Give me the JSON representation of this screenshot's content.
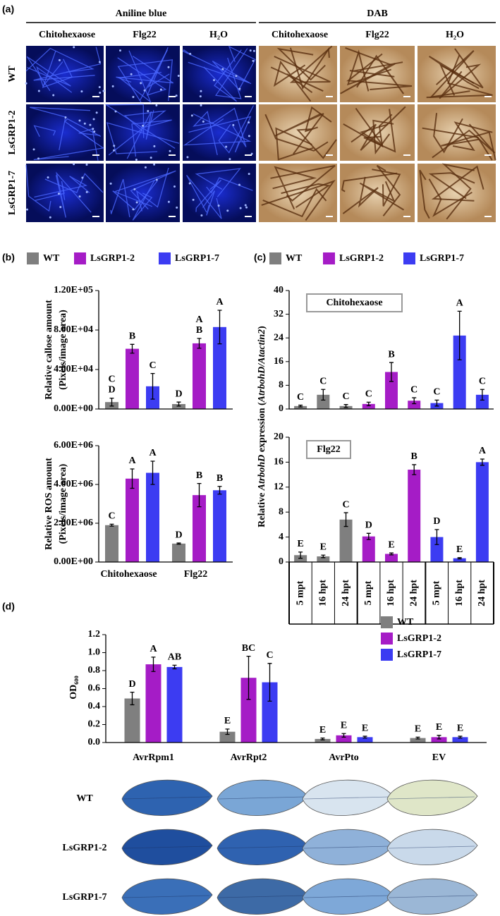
{
  "panel_a": {
    "label": "(a)",
    "groups": [
      "Aniline blue",
      "DAB"
    ],
    "columns": [
      "Chitohexaose",
      "Flg22",
      "H₂O",
      "Chitohexaose",
      "Flg22",
      "H₂O"
    ],
    "rows": [
      "WT",
      "LsGRP1-2",
      "LsGRP1-7"
    ]
  },
  "chart_data": [
    {
      "type": "bar",
      "panel_label": "(b)",
      "categories": [
        "Chitohexaose",
        "Flg22"
      ],
      "series": [
        {
          "name": "WT",
          "color": "#7f7f7f"
        },
        {
          "name": "LsGRP1-2",
          "color": "#a51cc6"
        },
        {
          "name": "LsGRP1-7",
          "color": "#3c3cf2"
        }
      ],
      "subplots": [
        {
          "ylabel": [
            "Relative callose amount",
            "(Pixels/image area)"
          ],
          "ylim": [
            0,
            120000
          ],
          "yticks": [
            {
              "value": 0,
              "label": "0.00E+00"
            },
            {
              "value": 40000,
              "label": "4.00E+04"
            },
            {
              "value": 80000,
              "label": "8.00E+04"
            },
            {
              "value": 120000,
              "label": "1.20E+05"
            }
          ],
          "series": [
            {
              "values": [
                7000,
                5000
              ],
              "errors": [
                4000,
                2000
              ],
              "letters": [
                [
                  "C",
                  "D"
                ],
                "D"
              ]
            },
            {
              "values": [
                61000,
                66500
              ],
              "errors": [
                4500,
                5000
              ],
              "letters": [
                "B",
                [
                  "A",
                  "B"
                ]
              ]
            },
            {
              "values": [
                23000,
                83000
              ],
              "errors": [
                13000,
                17000
              ],
              "letters": [
                "C",
                "A"
              ]
            }
          ]
        },
        {
          "ylabel": [
            "Relative ROS amount",
            "(Pixels/image area)"
          ],
          "ylim": [
            0,
            6000000
          ],
          "yticks": [
            {
              "value": 0,
              "label": "0.00E+00"
            },
            {
              "value": 2000000,
              "label": "2.00E+06"
            },
            {
              "value": 4000000,
              "label": "4.00E+06"
            },
            {
              "value": 6000000,
              "label": "6.00E+06"
            }
          ],
          "series": [
            {
              "values": [
                1900000,
                950000
              ],
              "errors": [
                50000,
                30000
              ],
              "letters": [
                "C",
                "D"
              ]
            },
            {
              "values": [
                4300000,
                3450000
              ],
              "errors": [
                500000,
                600000
              ],
              "letters": [
                "A",
                "B"
              ]
            },
            {
              "values": [
                4600000,
                3700000
              ],
              "errors": [
                600000,
                200000
              ],
              "letters": [
                "A",
                "B"
              ]
            }
          ]
        }
      ]
    },
    {
      "type": "bar",
      "panel_label": "(c)",
      "categories": [
        "5 mpt",
        "16 hpt",
        "24 hpt"
      ],
      "series": [
        {
          "name": "WT",
          "color": "#7f7f7f"
        },
        {
          "name": "LsGRP1-2",
          "color": "#a51cc6"
        },
        {
          "name": "LsGRP1-7",
          "color": "#3c3cf2"
        }
      ],
      "ylabel": [
        "Relative ",
        "AtrbohD",
        " expression (",
        "AtrbohD/Atactin2",
        ")"
      ],
      "subplots": [
        {
          "title": "Chitohexaose",
          "ylim": [
            0,
            40
          ],
          "yticks": [
            0,
            8,
            16,
            24,
            32,
            40
          ],
          "series": [
            {
              "values": [
                1.0,
                4.8,
                1.0
              ],
              "errors": [
                0.3,
                1.8,
                0.5
              ],
              "letters": [
                "C",
                "C",
                "C"
              ]
            },
            {
              "values": [
                1.7,
                12.5,
                2.8
              ],
              "errors": [
                0.6,
                3.2,
                1.0
              ],
              "letters": [
                "C",
                "B",
                "C"
              ]
            },
            {
              "values": [
                2.0,
                24.8,
                4.8
              ],
              "errors": [
                1.0,
                8.2,
                1.8
              ],
              "letters": [
                "C",
                "A",
                "C"
              ]
            }
          ]
        },
        {
          "title": "Flg22",
          "ylim": [
            0,
            20
          ],
          "yticks": [
            0,
            4,
            8,
            12,
            16,
            20
          ],
          "series": [
            {
              "values": [
                1.1,
                0.9,
                6.8
              ],
              "errors": [
                0.5,
                0.2,
                1.1
              ],
              "letters": [
                "E",
                "E",
                "C"
              ]
            },
            {
              "values": [
                4.1,
                1.3,
                14.8
              ],
              "errors": [
                0.5,
                0.15,
                0.8
              ],
              "letters": [
                "D",
                "E",
                "B"
              ]
            },
            {
              "values": [
                4.0,
                0.6,
                16.0
              ],
              "errors": [
                1.2,
                0.1,
                0.5
              ],
              "letters": [
                "D",
                "E",
                "A"
              ]
            }
          ]
        }
      ]
    },
    {
      "type": "bar",
      "panel_label": "(d)",
      "categories": [
        "AvrRpm1",
        "AvrRpt2",
        "AvrPto",
        "EV"
      ],
      "ylabel": "OD₆₀₀",
      "ylim": [
        0,
        1.2
      ],
      "yticks": [
        {
          "value": 0,
          "label": "0.0"
        },
        0.2,
        0.4,
        0.6,
        0.8,
        {
          "value": 1,
          "label": "1.0"
        },
        1.2
      ],
      "series": [
        {
          "name": "WT",
          "color": "#7f7f7f",
          "values": [
            0.49,
            0.12,
            0.04,
            0.05
          ],
          "errors": [
            0.07,
            0.03,
            0.01,
            0.01
          ],
          "letters": [
            "D",
            "E",
            "E",
            "E"
          ]
        },
        {
          "name": "LsGRP1-2",
          "color": "#a51cc6",
          "values": [
            0.87,
            0.72,
            0.08,
            0.06
          ],
          "errors": [
            0.08,
            0.24,
            0.02,
            0.02
          ],
          "letters": [
            "A",
            "BC",
            "E",
            "E"
          ]
        },
        {
          "name": "LsGRP1-7",
          "color": "#3c3cf2",
          "values": [
            0.84,
            0.67,
            0.06,
            0.06
          ],
          "errors": [
            0.02,
            0.21,
            0.01,
            0.01
          ],
          "letters": [
            "AB",
            "C",
            "E",
            "E"
          ]
        }
      ]
    }
  ],
  "panel_d_images": {
    "rows": [
      "WT",
      "LsGRP1-2",
      "LsGRP1-7"
    ]
  }
}
